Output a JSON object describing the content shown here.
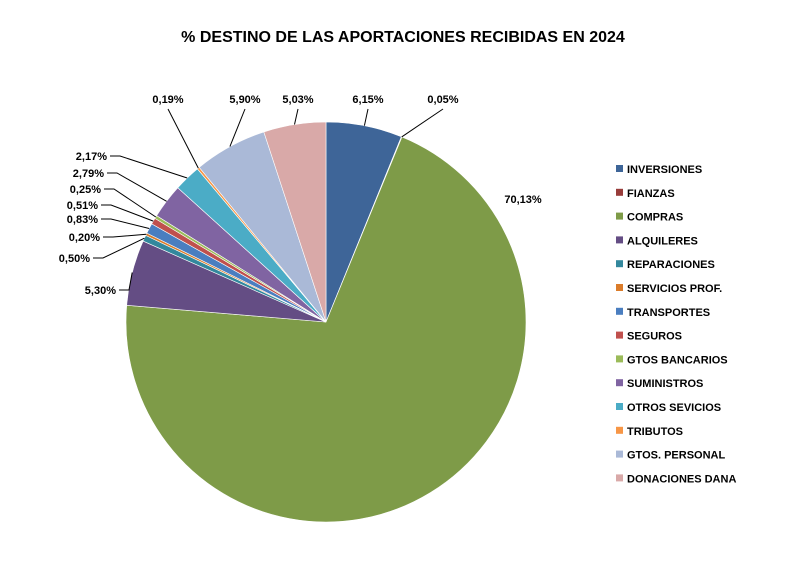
{
  "chart_data": {
    "type": "pie",
    "title": "% DESTINO DE LAS APORTACIONES RECIBIDAS EN 2024",
    "legend_position": "right",
    "slices": [
      {
        "name": "INVERSIONES",
        "value": 6.15,
        "label": "6,15%",
        "color": "#3E6598"
      },
      {
        "name": "FIANZAS",
        "value": 0.05,
        "label": "0,05%",
        "color": "#983C3A"
      },
      {
        "name": "COMPRAS",
        "value": 70.13,
        "label": "70,13%",
        "color": "#7E9B48"
      },
      {
        "name": "ALQUILERES",
        "value": 5.3,
        "label": "5,30%",
        "color": "#644D84"
      },
      {
        "name": "REPARACIONES",
        "value": 0.5,
        "label": "0,50%",
        "color": "#33889D"
      },
      {
        "name": "SERVICIOS PROF.",
        "value": 0.2,
        "label": "0,20%",
        "color": "#DB7C2A"
      },
      {
        "name": "TRANSPORTES",
        "value": 0.83,
        "label": "0,83%",
        "color": "#4A7EC0"
      },
      {
        "name": "SEGUROS",
        "value": 0.51,
        "label": "0,51%",
        "color": "#C0504D"
      },
      {
        "name": "GTOS BANCARIOS",
        "value": 0.25,
        "label": "0,25%",
        "color": "#9BBB59"
      },
      {
        "name": "SUMINISTROS",
        "value": 2.79,
        "label": "2,79%",
        "color": "#8064A2"
      },
      {
        "name": "OTROS SEVICIOS",
        "value": 2.17,
        "label": "2,17%",
        "color": "#4BACC6"
      },
      {
        "name": "TRIBUTOS",
        "value": 0.19,
        "label": "0,19%",
        "color": "#F79646"
      },
      {
        "name": "GTOS. PERSONAL",
        "value": 5.9,
        "label": "5,90%",
        "color": "#AAB9D7"
      },
      {
        "name": "DONACIONES DANA",
        "value": 5.03,
        "label": "5,03%",
        "color": "#D9A9A8"
      }
    ]
  }
}
